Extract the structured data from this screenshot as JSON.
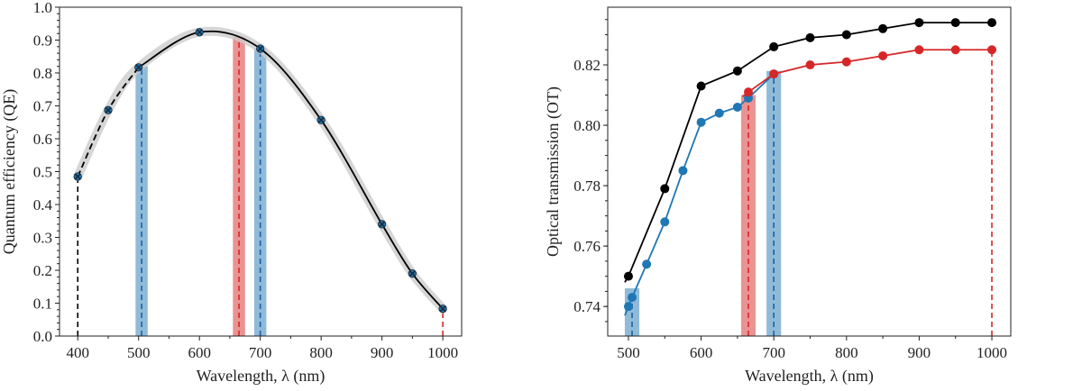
{
  "chart_data": [
    {
      "type": "line",
      "xlabel": "Wavelength, λ (nm)",
      "ylabel": "Quantum efficiency (QE)",
      "xlim": [
        370,
        1031
      ],
      "ylim": [
        0.0,
        1.0
      ],
      "xticks": [
        400,
        500,
        600,
        700,
        800,
        900,
        1000
      ],
      "yticks": [
        0.0,
        0.1,
        0.2,
        0.3,
        0.4,
        0.5,
        0.6,
        0.7,
        0.8,
        0.9,
        1.0
      ],
      "ytick_labels": [
        "0.0",
        "0.1",
        "0.2",
        "0.3",
        "0.4",
        "0.5",
        "0.6",
        "0.7",
        "0.8",
        "0.9",
        "1.0"
      ],
      "grid": false,
      "series": [
        {
          "x": [
            400,
            450,
            500,
            600,
            700,
            800,
            900,
            950,
            1000
          ],
          "y": [
            0.485,
            0.687,
            0.817,
            0.924,
            0.874,
            0.657,
            0.34,
            0.19,
            0.083
          ],
          "color": "#000000",
          "marker": "x",
          "marker_color": "#1f77b4"
        }
      ],
      "bands": [
        {
          "x0": 495,
          "x1": 515,
          "top": 0.82,
          "color": "#1f77b4"
        },
        {
          "x0": 655,
          "x1": 675,
          "top": 0.91,
          "color": "#d62728"
        },
        {
          "x0": 690,
          "x1": 710,
          "top": 0.875,
          "color": "#1f77b4"
        }
      ],
      "vlines": [
        {
          "x": 400,
          "top": 0.485,
          "color": "#000000"
        },
        {
          "x": 505,
          "top": 0.82,
          "color": "#1f5fa0"
        },
        {
          "x": 665,
          "top": 0.91,
          "color": "#d62728"
        },
        {
          "x": 700,
          "top": 0.874,
          "color": "#1f5fa0"
        },
        {
          "x": 1000,
          "top": 0.083,
          "color": "#d62728"
        }
      ]
    },
    {
      "type": "line",
      "xlabel": "Wavelength, λ (nm)",
      "ylabel": "Optical transmission (OT)",
      "xlim": [
        471.5,
        1026
      ],
      "ylim": [
        0.7302,
        0.8391
      ],
      "xticks": [
        500,
        600,
        700,
        800,
        900,
        1000
      ],
      "yticks": [
        0.74,
        0.76,
        0.78,
        0.8,
        0.82
      ],
      "ytick_labels": [
        "0.74",
        "0.76",
        "0.78",
        "0.80",
        "0.82"
      ],
      "grid": false,
      "series": [
        {
          "x": [
            500,
            550,
            600,
            650,
            700,
            750,
            800,
            850,
            900,
            950,
            1000
          ],
          "y": [
            0.75,
            0.779,
            0.813,
            0.818,
            0.826,
            0.829,
            0.83,
            0.832,
            0.834,
            0.834,
            0.834
          ],
          "color": "#000000",
          "line_start": [
            495,
            0.748
          ]
        },
        {
          "x": [
            500,
            505,
            525,
            550,
            575,
            600,
            625,
            650,
            665,
            700
          ],
          "y": [
            0.74,
            0.743,
            0.754,
            0.768,
            0.785,
            0.801,
            0.804,
            0.806,
            0.809,
            0.817
          ],
          "color": "#1f77b4",
          "line_start": [
            495,
            0.737
          ]
        },
        {
          "x": [
            665,
            700,
            750,
            800,
            850,
            900,
            950,
            1000
          ],
          "y": [
            0.811,
            0.817,
            0.82,
            0.821,
            0.823,
            0.825,
            0.825,
            0.825
          ],
          "color": "#d62728",
          "line_start": [
            657,
            0.8095
          ]
        }
      ],
      "bands": [
        {
          "x0": 495,
          "x1": 515,
          "top": 0.746,
          "color": "#1f77b4"
        },
        {
          "x0": 655,
          "x1": 675,
          "top": 0.81,
          "color": "#d62728"
        },
        {
          "x0": 690,
          "x1": 710,
          "top": 0.818,
          "color": "#1f77b4"
        }
      ],
      "vlines": [
        {
          "x": 505,
          "top": 0.743,
          "color": "#1f5fa0"
        },
        {
          "x": 665,
          "top": 0.811,
          "color": "#d62728"
        },
        {
          "x": 700,
          "top": 0.817,
          "color": "#1f5fa0"
        },
        {
          "x": 1000,
          "top": 0.825,
          "color": "#d62728"
        }
      ]
    }
  ]
}
